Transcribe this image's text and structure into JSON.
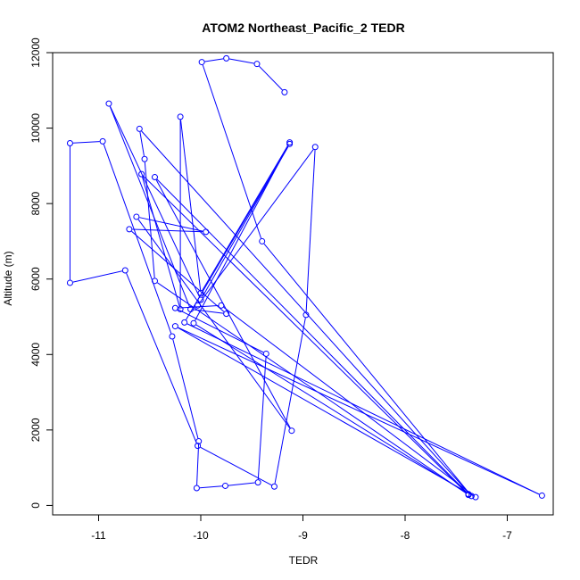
{
  "chart_data": {
    "type": "line",
    "title": "ATOM2 Northeast_Pacific_2 TEDR",
    "xlabel": "TEDR",
    "ylabel": "Altitude (m)",
    "xlim": [
      -11.45,
      -6.55
    ],
    "ylim": [
      -250,
      12000
    ],
    "x_ticks": [
      -11,
      -10,
      -9,
      -8,
      -7
    ],
    "x_tick_labels": [
      "-11",
      "-10",
      "-9",
      "-8",
      "-7"
    ],
    "y_ticks": [
      0,
      2000,
      4000,
      6000,
      8000,
      10000,
      12000
    ],
    "y_tick_labels": [
      "0",
      "2000",
      "4000",
      "6000",
      "8000",
      "10000",
      "12000"
    ],
    "color": "#0000ff",
    "marker": "open-circle",
    "series": [
      {
        "points": [
          [
            -9.18,
            10950
          ],
          [
            -9.45,
            11700
          ],
          [
            -9.75,
            11850
          ],
          [
            -9.99,
            11750
          ],
          [
            -9.4,
            7000
          ],
          [
            -7.35,
            250
          ],
          [
            -10.6,
            9980
          ],
          [
            -10.55,
            9180
          ],
          [
            -10.45,
            5950
          ],
          [
            -7.38,
            280
          ],
          [
            -10.58,
            8780
          ],
          [
            -10.2,
            5200
          ],
          [
            -10.2,
            10300
          ],
          [
            -10.0,
            5630
          ],
          [
            -9.13,
            9620
          ],
          [
            -10.07,
            4830
          ],
          [
            -7.38,
            300
          ],
          [
            -10.45,
            8700
          ],
          [
            -9.11,
            1980
          ],
          [
            -10.63,
            7650
          ],
          [
            -9.95,
            7250
          ],
          [
            -10.7,
            7320
          ],
          [
            -9.75,
            5080
          ],
          [
            -10.1,
            5200
          ],
          [
            -10.9,
            10650
          ],
          [
            -10.0,
            5450
          ],
          [
            -9.13,
            9580
          ],
          [
            -10.16,
            4850
          ],
          [
            -6.66,
            260
          ],
          [
            -10.25,
            4750
          ],
          [
            -7.31,
            220
          ],
          [
            -9.8,
            5300
          ],
          [
            -10.25,
            5230
          ],
          [
            -9.36,
            4020
          ],
          [
            -9.44,
            610
          ],
          [
            -9.76,
            520
          ],
          [
            -10.04,
            460
          ],
          [
            -10.02,
            1700
          ],
          [
            -10.28,
            4480
          ],
          [
            -10.96,
            9650
          ],
          [
            -11.28,
            9600
          ],
          [
            -11.28,
            5900
          ],
          [
            -10.74,
            6230
          ],
          [
            -10.03,
            1580
          ],
          [
            -9.28,
            500
          ],
          [
            -8.97,
            5050
          ],
          [
            -8.88,
            9500
          ],
          [
            -10.03,
            5300
          ]
        ]
      }
    ]
  }
}
